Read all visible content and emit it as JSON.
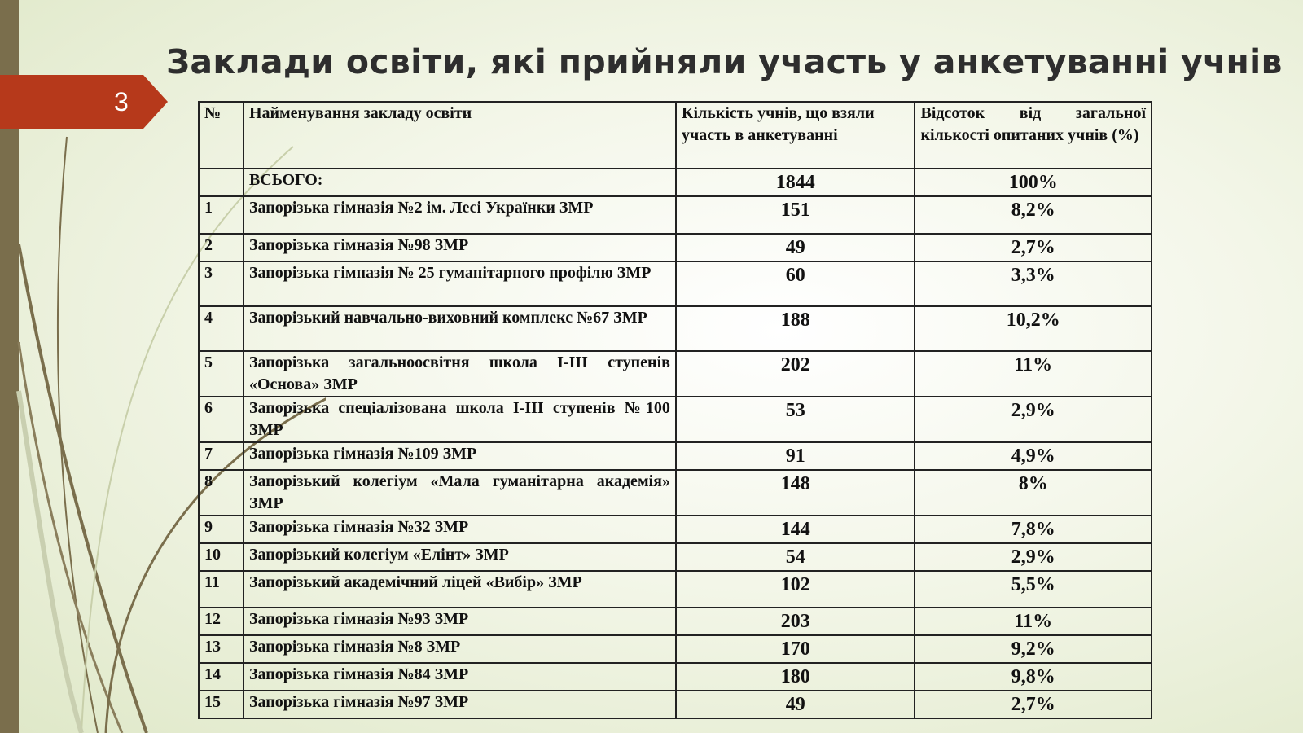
{
  "slide_number": "3",
  "title": "Заклади освіти, які прийняли участь у анкетуванні учнів",
  "table": {
    "headers": [
      "№",
      "Найменування закладу освіти",
      "Кількість учнів, що взяли участь в анкетуванні",
      "Відсоток від загальної кількості опитаних учнів (%)"
    ],
    "total": {
      "label": "ВСЬОГО:",
      "count": "1844",
      "percent": "100%"
    },
    "rows": [
      {
        "n": "1",
        "name": "Запорізька гімназія №2 ім. Лесі Українки ЗМР",
        "count": "151",
        "percent": "8,2%"
      },
      {
        "n": "2",
        "name": "Запорізька гімназія №98 ЗМР",
        "count": "49",
        "percent": "2,7%"
      },
      {
        "n": "3",
        "name": "Запорізька гімназія № 25 гуманітарного профілю ЗМР",
        "count": "60",
        "percent": "3,3%"
      },
      {
        "n": "4",
        "name": "Запорізький навчально-виховний комплекс №67 ЗМР",
        "count": "188",
        "percent": "10,2%"
      },
      {
        "n": "5",
        "name": "Запорізька загальноосвітня школа І-ІІІ ступенів «Основа» ЗМР",
        "count": "202",
        "percent": "11%"
      },
      {
        "n": "6",
        "name": "Запорізька спеціалізована школа  І-ІІІ ступенів №100 ЗМР",
        "count": "53",
        "percent": "2,9%"
      },
      {
        "n": "7",
        "name": "Запорізька гімназія №109 ЗМР",
        "count": "91",
        "percent": "4,9%"
      },
      {
        "n": "8",
        "name": "Запорізький колегіум «Мала гуманітарна академія» ЗМР",
        "count": "148",
        "percent": "8%"
      },
      {
        "n": "9",
        "name": "Запорізька гімназія №32 ЗМР",
        "count": "144",
        "percent": "7,8%"
      },
      {
        "n": "10",
        "name": "Запорізький колегіум «Елінт» ЗМР",
        "count": "54",
        "percent": "2,9%"
      },
      {
        "n": "11",
        "name": "Запорізький академічний ліцей «Вибір» ЗМР",
        "count": "102",
        "percent": "5,5%"
      },
      {
        "n": "12",
        "name": "Запорізька гімназія №93 ЗМР",
        "count": "203",
        "percent": "11%"
      },
      {
        "n": "13",
        "name": "Запорізька гімназія №8 ЗМР",
        "count": "170",
        "percent": "9,2%"
      },
      {
        "n": "14",
        "name": "Запорізька гімназія №84 ЗМР",
        "count": "180",
        "percent": "9,8%"
      },
      {
        "n": "15",
        "name": "Запорізька гімназія №97 ЗМР",
        "count": "49",
        "percent": "2,7%"
      }
    ]
  },
  "colors": {
    "accent": "#b6391b",
    "stripe": "#7a6e4c"
  }
}
